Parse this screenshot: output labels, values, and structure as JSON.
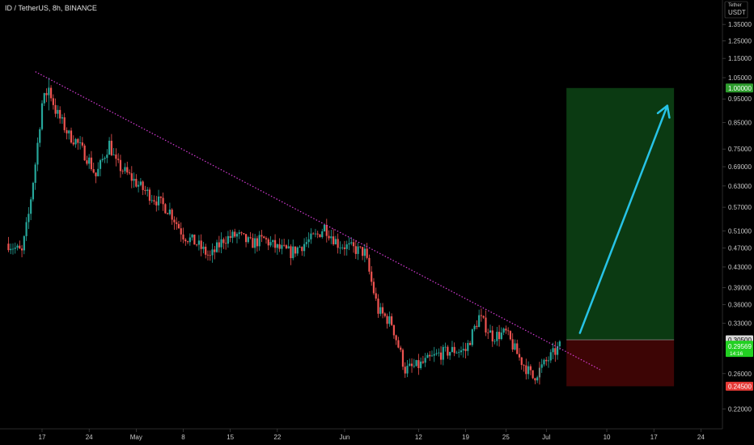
{
  "header": {
    "symbol_title": "ID / TetherUS, 8h, BINANCE",
    "currency_label": "USDT",
    "currency_top_label": "Tether"
  },
  "colors": {
    "background": "#000000",
    "up_candle": "#26a69a",
    "down_candle": "#ef5350",
    "trendline": "#d63cd6",
    "target_zone": "#0b3a12",
    "stop_zone": "#3d0505",
    "arrow": "#27c3e6",
    "green_tag": "#2e9c2e",
    "red_tag": "#e53935",
    "grey_tag": "#d9d9d9"
  },
  "price_axis": {
    "ticks": [
      "1.35000",
      "1.25000",
      "1.15000",
      "1.05000",
      "0.95000",
      "0.85000",
      "0.75000",
      "0.69000",
      "0.63000",
      "0.57000",
      "0.51000",
      "0.47000",
      "0.43000",
      "0.39000",
      "0.36000",
      "0.33000",
      "0.26000",
      "0.22000"
    ],
    "tags": {
      "target": "1.00000",
      "entry": "0.30500",
      "current": "0.29569",
      "countdown": "14:16",
      "stop": "0.24500"
    }
  },
  "time_axis": {
    "ticks": [
      "17",
      "24",
      "May",
      "8",
      "15",
      "22",
      "Jun",
      "12",
      "19",
      "25",
      "Jul",
      "10",
      "17",
      "24"
    ]
  },
  "chart_data": {
    "type": "candlestick",
    "title": "ID / TetherUS, 8h, BINANCE",
    "y_scale": "log",
    "ylim": [
      0.205,
      1.45
    ],
    "y_unit": "USDT",
    "close_path": [
      [
        "Apr 12",
        0.48
      ],
      [
        "Apr 14",
        0.46
      ],
      [
        "Apr 15",
        0.55
      ],
      [
        "Apr 16",
        0.7
      ],
      [
        "Apr 17",
        0.93
      ],
      [
        "Apr 18",
        1.0
      ],
      [
        "Apr 19",
        0.9
      ],
      [
        "Apr 21",
        0.8
      ],
      [
        "Apr 22",
        0.78
      ],
      [
        "Apr 24",
        0.71
      ],
      [
        "Apr 25",
        0.66
      ],
      [
        "Apr 27",
        0.77
      ],
      [
        "Apr 28",
        0.7
      ],
      [
        "Apr 30",
        0.66
      ],
      [
        "May 2",
        0.62
      ],
      [
        "May 4",
        0.59
      ],
      [
        "May 6",
        0.56
      ],
      [
        "May 8",
        0.5
      ],
      [
        "May 10",
        0.48
      ],
      [
        "May 12",
        0.45
      ],
      [
        "May 14",
        0.49
      ],
      [
        "May 16",
        0.5
      ],
      [
        "May 18",
        0.48
      ],
      [
        "May 20",
        0.49
      ],
      [
        "May 22",
        0.47
      ],
      [
        "May 24",
        0.46
      ],
      [
        "May 26",
        0.48
      ],
      [
        "May 28",
        0.5
      ],
      [
        "May 29",
        0.52
      ],
      [
        "May 31",
        0.48
      ],
      [
        "Jun 2",
        0.47
      ],
      [
        "Jun 4",
        0.46
      ],
      [
        "Jun 5",
        0.4
      ],
      [
        "Jun 6",
        0.35
      ],
      [
        "Jun 8",
        0.33
      ],
      [
        "Jun 10",
        0.265
      ],
      [
        "Jun 12",
        0.27
      ],
      [
        "Jun 15",
        0.285
      ],
      [
        "Jun 17",
        0.29
      ],
      [
        "Jun 19",
        0.29
      ],
      [
        "Jun 21",
        0.34
      ],
      [
        "Jun 23",
        0.31
      ],
      [
        "Jun 25",
        0.315
      ],
      [
        "Jun 27",
        0.28
      ],
      [
        "Jun 29",
        0.255
      ],
      [
        "Jul 1",
        0.275
      ],
      [
        "Jul 3",
        0.2957
      ]
    ],
    "swing_high": 1.05,
    "swing_low": 0.245,
    "trendline": {
      "from": [
        "Apr 16",
        1.08
      ],
      "to": [
        "Jul 9",
        0.265
      ],
      "style": "dotted"
    },
    "long_position": {
      "entry": 0.305,
      "target": 1.0,
      "stop": 0.245,
      "from": "Jul 4",
      "to": "Jul 20"
    },
    "arrow": {
      "from": [
        "Jul 6",
        0.315
      ],
      "to": [
        "Jul 19",
        0.92
      ]
    },
    "last_price": 0.29569,
    "grid": false
  }
}
